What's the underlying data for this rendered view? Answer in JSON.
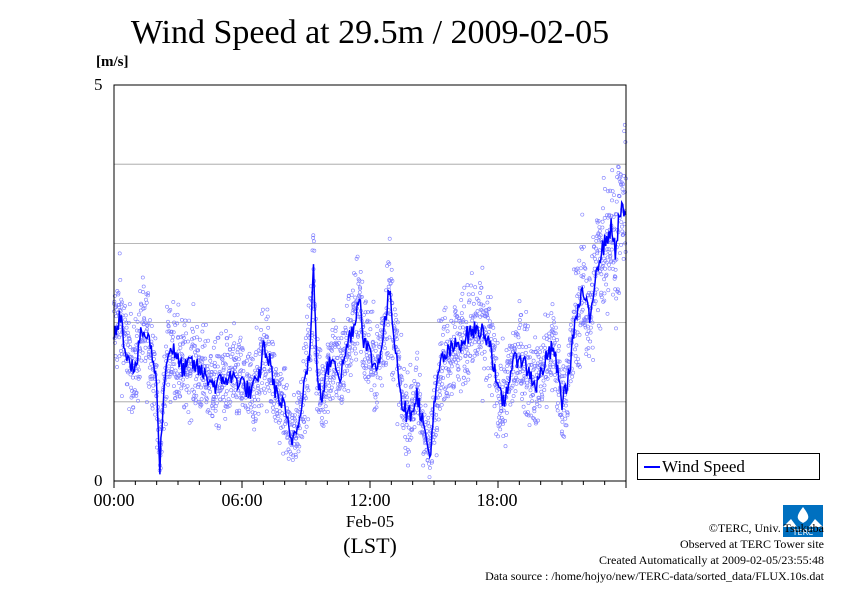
{
  "chart_data": {
    "type": "scatter+line",
    "title": "Wind Speed at 29.5m / 2009-02-05",
    "ylabel": "[m/s]",
    "ylim": [
      0,
      5
    ],
    "yticks": [
      "0",
      "5"
    ],
    "xlim_hours": [
      0,
      24
    ],
    "xticks": [
      {
        "hour": 0,
        "label": "00:00"
      },
      {
        "hour": 6,
        "label": "06:00"
      },
      {
        "hour": 12,
        "label": "12:00"
      },
      {
        "hour": 18,
        "label": "18:00"
      }
    ],
    "date_label": "Feb-05",
    "tz_label": "(LST)",
    "legend": "Wind Speed",
    "series": [
      {
        "name": "Wind Speed",
        "x_hours": [
          0.0,
          0.3,
          0.5,
          0.8,
          1.0,
          1.3,
          1.6,
          1.8,
          2.0,
          2.15,
          2.3,
          2.5,
          2.7,
          3.0,
          3.3,
          3.6,
          4.0,
          4.4,
          4.8,
          5.2,
          5.6,
          6.0,
          6.4,
          6.8,
          7.0,
          7.3,
          7.6,
          8.0,
          8.3,
          8.6,
          8.9,
          9.2,
          9.35,
          9.5,
          9.7,
          10.0,
          10.3,
          10.6,
          11.0,
          11.3,
          11.5,
          11.7,
          12.0,
          12.3,
          12.6,
          12.9,
          13.2,
          13.5,
          13.8,
          14.2,
          14.5,
          14.8,
          15.0,
          15.3,
          15.6,
          16.0,
          16.4,
          16.8,
          17.2,
          17.6,
          18.0,
          18.3,
          18.6,
          19.0,
          19.4,
          19.8,
          20.2,
          20.6,
          21.0,
          21.3,
          21.6,
          22.0,
          22.3,
          22.6,
          23.0,
          23.3,
          23.5,
          23.7
        ],
        "y": [
          1.9,
          2.1,
          1.7,
          1.5,
          1.4,
          1.9,
          1.8,
          1.6,
          1.2,
          0.2,
          1.0,
          1.6,
          1.7,
          1.5,
          1.4,
          1.5,
          1.4,
          1.3,
          1.2,
          1.3,
          1.3,
          1.25,
          1.1,
          1.3,
          1.7,
          1.5,
          1.1,
          0.9,
          0.5,
          0.7,
          1.2,
          1.7,
          2.7,
          1.5,
          1.0,
          1.4,
          1.6,
          1.3,
          1.8,
          2.0,
          2.4,
          1.8,
          1.6,
          1.4,
          1.8,
          2.4,
          1.7,
          1.0,
          0.8,
          1.1,
          0.7,
          0.3,
          0.9,
          1.5,
          1.6,
          1.7,
          1.8,
          1.9,
          1.9,
          1.8,
          1.1,
          1.0,
          1.4,
          1.6,
          1.4,
          1.2,
          1.5,
          1.7,
          1.0,
          1.3,
          2.0,
          2.4,
          2.0,
          2.7,
          3.0,
          3.2,
          2.9,
          3.4
        ]
      }
    ]
  },
  "credits": {
    "copyright": "©TERC, Univ. Tsukuba",
    "observed": "Observed at TERC Tower site",
    "created": "Created Automatically at 2009-02-05/23:55:48",
    "source": "Data source : /home/hojyo/new/TERC-data/sorted_data/FLUX.10s.dat"
  },
  "logo": {
    "text": "TERC",
    "color": "#0070c0"
  }
}
